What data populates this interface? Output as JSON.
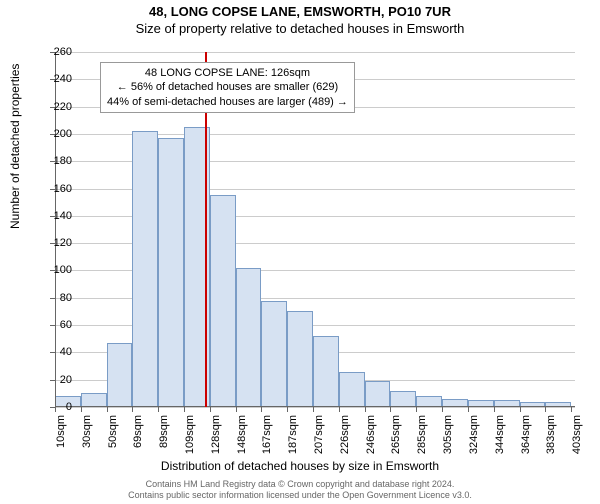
{
  "title_main": "48, LONG COPSE LANE, EMSWORTH, PO10 7UR",
  "title_sub": "Size of property relative to detached houses in Emsworth",
  "ylabel": "Number of detached properties",
  "xlabel": "Distribution of detached houses by size in Emsworth",
  "chart": {
    "type": "histogram",
    "bar_fill": "#d6e2f2",
    "bar_border": "#7a9cc6",
    "grid_color": "#cccccc",
    "background_color": "#ffffff",
    "ref_line_color": "#cc0000",
    "ref_line_x": 126,
    "ylim": [
      0,
      260
    ],
    "ytick_step": 20,
    "x_min": 10,
    "x_max": 413,
    "x_bin_width": 20,
    "xtick_labels": [
      "10sqm",
      "30sqm",
      "50sqm",
      "69sqm",
      "89sqm",
      "109sqm",
      "128sqm",
      "148sqm",
      "167sqm",
      "187sqm",
      "207sqm",
      "226sqm",
      "246sqm",
      "265sqm",
      "285sqm",
      "305sqm",
      "324sqm",
      "344sqm",
      "364sqm",
      "383sqm",
      "403sqm"
    ],
    "values": [
      8,
      10,
      47,
      202,
      197,
      205,
      155,
      102,
      78,
      70,
      52,
      26,
      19,
      12,
      8,
      6,
      5,
      5,
      4,
      4
    ],
    "label_fontsize": 11,
    "axis_fontsize": 12,
    "title_fontsize": 13
  },
  "annotation": {
    "line1": "48 LONG COPSE LANE: 126sqm",
    "line2": "← 56% of detached houses are smaller (629)",
    "line3": "44% of semi-detached houses are larger (489) →"
  },
  "footer": {
    "line1": "Contains HM Land Registry data © Crown copyright and database right 2024.",
    "line2": "Contains public sector information licensed under the Open Government Licence v3.0."
  }
}
